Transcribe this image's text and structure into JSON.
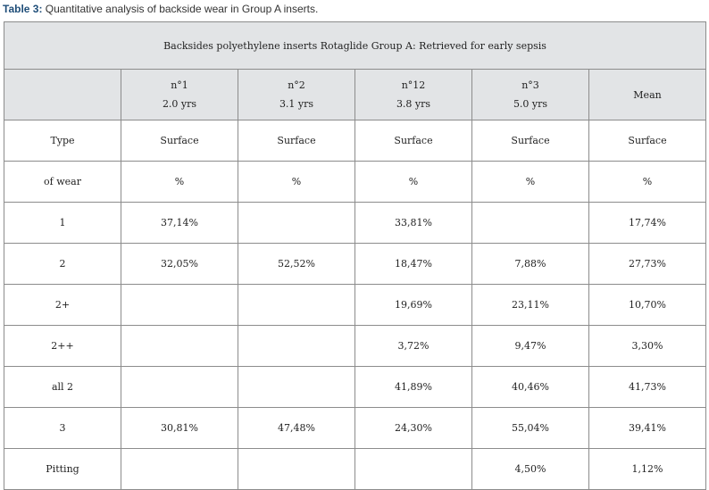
{
  "caption": {
    "label": "Table 3:",
    "text": " Quantitative analysis of backside wear in Group A inserts."
  },
  "table": {
    "banner": "Backsides polyethylene inserts Rotaglide Group A: Retrieved for early sepsis",
    "headers": [
      {
        "line1": "",
        "line2": ""
      },
      {
        "line1": "n°1",
        "line2": "2.0 yrs"
      },
      {
        "line1": "n°2",
        "line2": "3.1 yrs"
      },
      {
        "line1": "n°12",
        "line2": "3.8 yrs"
      },
      {
        "line1": "n°3",
        "line2": "5.0 yrs"
      },
      {
        "line1": "Mean",
        "line2": ""
      }
    ],
    "rows": [
      [
        "Type",
        "Surface",
        "Surface",
        "Surface",
        "Surface",
        "Surface"
      ],
      [
        "of wear",
        "%",
        "%",
        "%",
        "%",
        "%"
      ],
      [
        "1",
        "37,14%",
        "",
        "33,81%",
        "",
        "17,74%"
      ],
      [
        "2",
        "32,05%",
        "52,52%",
        "18,47%",
        "7,88%",
        "27,73%"
      ],
      [
        "2+",
        "",
        "",
        "19,69%",
        "23,11%",
        "10,70%"
      ],
      [
        "2++",
        "",
        "",
        "3,72%",
        "9,47%",
        "3,30%"
      ],
      [
        "all 2",
        "",
        "",
        "41,89%",
        "40,46%",
        "41,73%"
      ],
      [
        "3",
        "30,81%",
        "47,48%",
        "24,30%",
        "55,04%",
        "39,41%"
      ],
      [
        "Pitting",
        "",
        "",
        "",
        "4,50%",
        "1,12%"
      ]
    ]
  }
}
